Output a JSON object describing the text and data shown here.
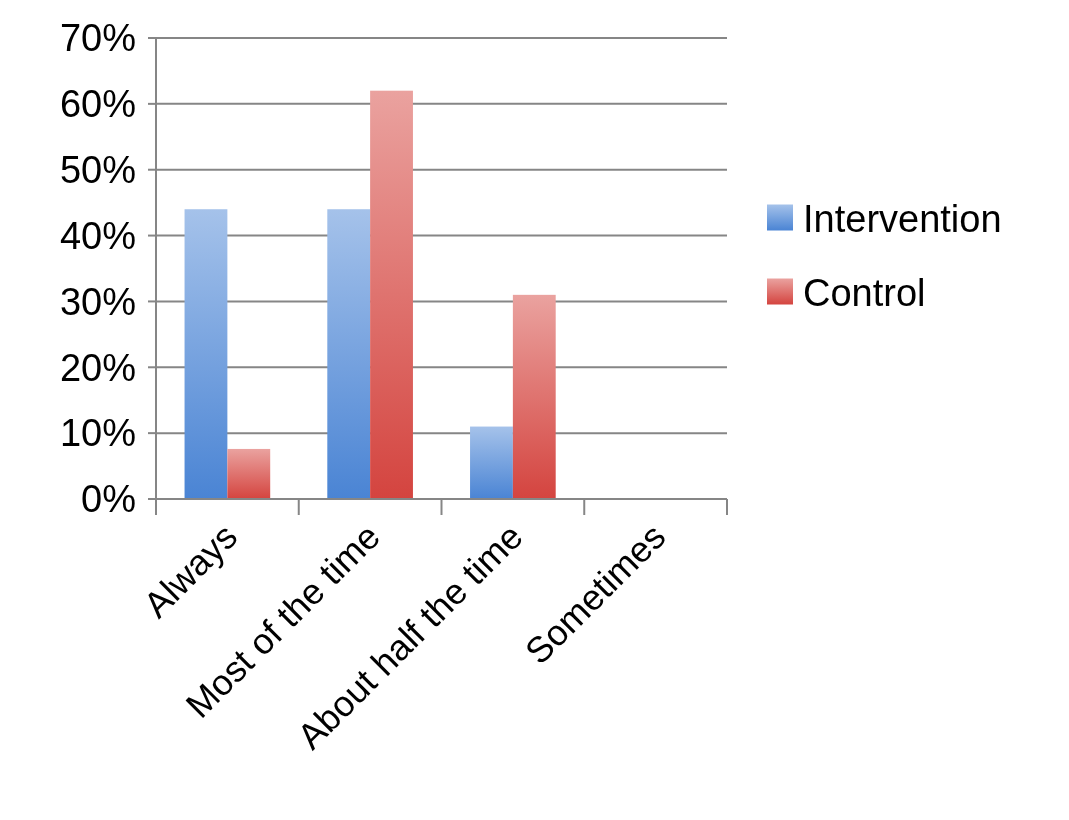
{
  "chart_data": {
    "type": "bar",
    "categories": [
      "Always",
      "Most of the time",
      "About half the time",
      "Sometimes"
    ],
    "series": [
      {
        "name": "Intervention",
        "color": "#4a84d4",
        "values": [
          44,
          44,
          11,
          0
        ]
      },
      {
        "name": "Control",
        "color": "#d4443f",
        "values": [
          7.6,
          62,
          31,
          0
        ]
      }
    ],
    "ylim": [
      0,
      70
    ],
    "yticks": [
      {
        "value": 0,
        "label": "0%"
      },
      {
        "value": 10,
        "label": "10%"
      },
      {
        "value": 20,
        "label": "20%"
      },
      {
        "value": 30,
        "label": "30%"
      },
      {
        "value": 40,
        "label": "40%"
      },
      {
        "value": 50,
        "label": "50%"
      },
      {
        "value": 60,
        "label": "60%"
      },
      {
        "value": 70,
        "label": "70%"
      }
    ],
    "grid": "y",
    "legend": "right"
  }
}
